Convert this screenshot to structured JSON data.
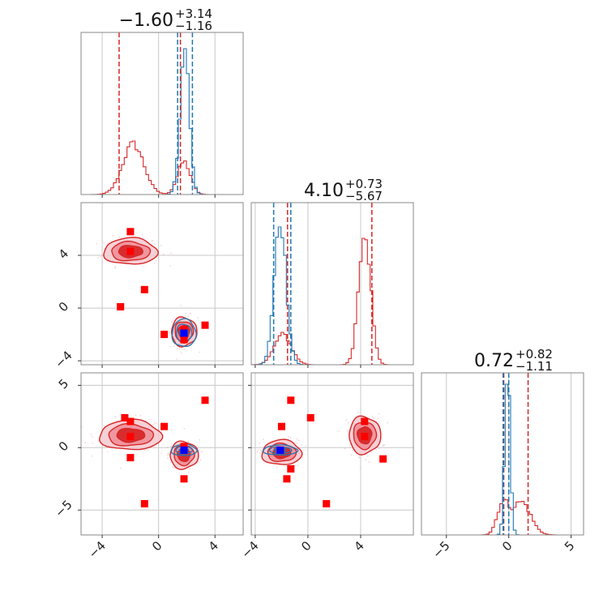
{
  "chart_data": {
    "type": "corner",
    "colors": {
      "red": "#d62728",
      "blue": "#1f77b4",
      "marker_red": "#ff0000",
      "marker_blue": "#0000ff",
      "grid": "#c8c8c8",
      "frame": "#888888"
    },
    "params": [
      {
        "name": "p0",
        "range": [
          -5.5,
          6.0
        ],
        "ticks": [
          -4,
          0,
          4
        ],
        "tick_labels": [
          "−4",
          "0",
          "4"
        ]
      },
      {
        "name": "p1",
        "range": [
          -4.3,
          8.0
        ],
        "ticks": [
          -4,
          0,
          4
        ],
        "tick_labels": [
          "−4",
          "0",
          "4"
        ]
      },
      {
        "name": "p2",
        "range": [
          -7.0,
          6.0
        ],
        "ticks": [
          -5,
          0,
          5
        ],
        "tick_labels": [
          "−5",
          "0",
          "5"
        ]
      }
    ],
    "titles": [
      {
        "value": "−1.60",
        "plus": "+3.14",
        "minus": "−1.16"
      },
      {
        "value": "4.10",
        "plus": "+0.73",
        "minus": "−5.67"
      },
      {
        "value": "0.72",
        "plus": "+0.82",
        "minus": "−1.11"
      }
    ],
    "diagonal": [
      {
        "red_components": [
          {
            "mu": -1.8,
            "sd": 0.75,
            "w": 0.72
          },
          {
            "mu": 1.8,
            "sd": 0.45,
            "w": 0.28
          }
        ],
        "red_peak_fraction": 0.33,
        "blue_components": [
          {
            "mu": 1.85,
            "sd": 0.33,
            "w": 1.0
          }
        ],
        "blue_peak_fraction": 0.9,
        "red_quantiles": [
          -2.8,
          1.55
        ],
        "blue_quantiles": [
          1.35,
          2.4
        ]
      },
      {
        "red_components": [
          {
            "mu": -1.9,
            "sd": 0.65,
            "w": 0.24
          },
          {
            "mu": 4.3,
            "sd": 0.45,
            "w": 0.76
          }
        ],
        "red_peak_fraction": 0.78,
        "blue_components": [
          {
            "mu": -2.1,
            "sd": 0.45,
            "w": 1.0
          }
        ],
        "blue_peak_fraction": 0.85,
        "red_quantiles": [
          -1.55,
          4.85
        ],
        "blue_quantiles": [
          -2.6,
          -1.3
        ]
      },
      {
        "red_components": [
          {
            "mu": 1.0,
            "sd": 0.75,
            "w": 0.65
          },
          {
            "mu": -0.5,
            "sd": 0.45,
            "w": 0.35
          }
        ],
        "red_peak_fraction": 0.22,
        "blue_components": [
          {
            "mu": -0.1,
            "sd": 0.22,
            "w": 1.0
          }
        ],
        "blue_peak_fraction": 0.93,
        "red_quantiles": [
          -0.4,
          1.55
        ],
        "blue_quantiles": [
          -0.45,
          0.0
        ]
      }
    ],
    "pairs": [
      {
        "row": 1,
        "col": 0,
        "red_clusters": [
          {
            "cx": -2.0,
            "cy": 4.3,
            "rx": 1.9,
            "ry": 1.0
          },
          {
            "cx": 1.8,
            "cy": -1.8,
            "rx": 0.9,
            "ry": 1.1
          }
        ],
        "blue_clusters": [
          {
            "cx": 1.8,
            "cy": -1.9,
            "rx": 0.85,
            "ry": 1.05
          }
        ],
        "red_markers": [
          [
            -2.0,
            5.8
          ],
          [
            -2.0,
            4.3
          ],
          [
            -1.0,
            1.4
          ],
          [
            -2.7,
            0.1
          ],
          [
            0.4,
            -2.0
          ],
          [
            3.3,
            -1.3
          ],
          [
            1.8,
            -1.6
          ],
          [
            1.8,
            -2.4
          ]
        ],
        "blue_markers": [
          [
            1.8,
            -1.9
          ]
        ]
      },
      {
        "row": 2,
        "col": 0,
        "red_clusters": [
          {
            "cx": -2.0,
            "cy": 1.0,
            "rx": 2.2,
            "ry": 1.2
          },
          {
            "cx": 1.8,
            "cy": -0.6,
            "rx": 1.0,
            "ry": 1.1
          }
        ],
        "blue_clusters": [
          {
            "cx": 1.8,
            "cy": -0.2,
            "rx": 0.9,
            "ry": 0.45
          }
        ],
        "red_markers": [
          [
            -2.4,
            2.4
          ],
          [
            -2.0,
            2.1
          ],
          [
            -2.0,
            0.9
          ],
          [
            -2.0,
            -0.8
          ],
          [
            0.4,
            1.7
          ],
          [
            3.3,
            3.8
          ],
          [
            1.8,
            -2.5
          ],
          [
            -1.0,
            -4.5
          ],
          [
            1.8,
            0.1
          ]
        ],
        "blue_markers": [
          [
            1.8,
            -0.2
          ]
        ]
      },
      {
        "row": 2,
        "col": 1,
        "red_clusters": [
          {
            "cx": -2.0,
            "cy": -0.4,
            "rx": 1.5,
            "ry": 1.0
          },
          {
            "cx": 4.3,
            "cy": 1.0,
            "rx": 1.2,
            "ry": 1.5
          }
        ],
        "blue_clusters": [
          {
            "cx": -2.1,
            "cy": -0.2,
            "rx": 1.3,
            "ry": 0.4
          }
        ],
        "red_markers": [
          [
            -2.0,
            1.7
          ],
          [
            -1.3,
            3.8
          ],
          [
            0.2,
            2.4
          ],
          [
            -1.3,
            -1.7
          ],
          [
            -1.6,
            -2.5
          ],
          [
            1.4,
            -4.5
          ],
          [
            4.3,
            2.1
          ],
          [
            4.3,
            0.9
          ],
          [
            5.7,
            -0.9
          ]
        ],
        "blue_markers": [
          [
            -2.1,
            -0.2
          ]
        ]
      }
    ]
  }
}
